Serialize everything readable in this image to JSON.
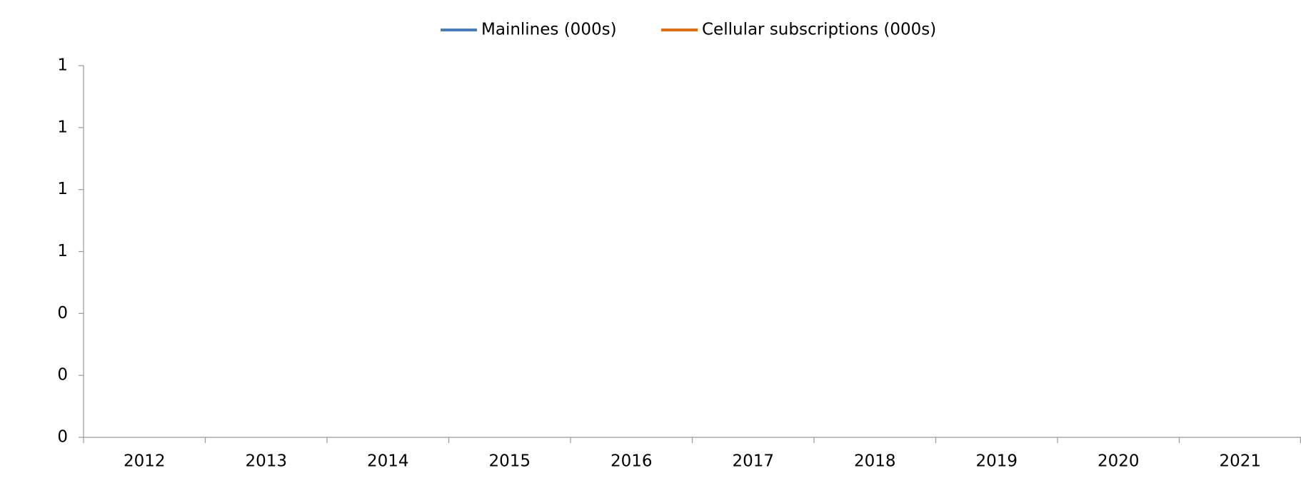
{
  "chart_data": {
    "type": "line",
    "categories": [
      "2012",
      "2013",
      "2014",
      "2015",
      "2016",
      "2017",
      "2018",
      "2019",
      "2020",
      "2021"
    ],
    "series": [
      {
        "name": "Mainlines (000s)",
        "color": "#4a7ebb",
        "values": [
          null,
          null,
          null,
          null,
          null,
          null,
          null,
          null,
          null,
          null
        ]
      },
      {
        "name": "Cellular subscriptions (000s)",
        "color": "#e46c0a",
        "values": [
          null,
          null,
          null,
          null,
          null,
          null,
          null,
          null,
          null,
          null
        ]
      }
    ],
    "ylim": [
      0,
      1.2
    ],
    "yticks": [
      {
        "value": 0,
        "label": "0"
      },
      {
        "value": 0.2,
        "label": "0"
      },
      {
        "value": 0.4,
        "label": "0"
      },
      {
        "value": 0.6,
        "label": "1"
      },
      {
        "value": 0.8,
        "label": "1"
      },
      {
        "value": 1.0,
        "label": "1"
      },
      {
        "value": 1.2,
        "label": "1"
      }
    ],
    "legend": "top",
    "grid": false
  }
}
